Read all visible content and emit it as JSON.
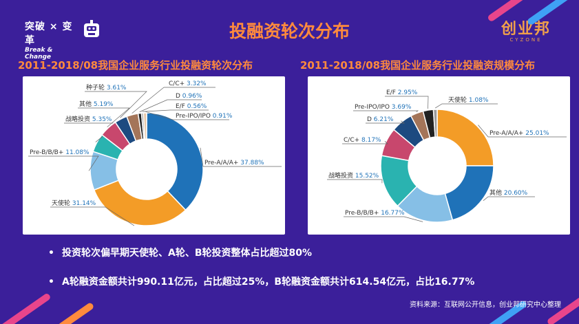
{
  "brand": {
    "left_cn": "突破 × 变革",
    "left_en": "Break & Change",
    "right_cn": "创业邦",
    "right_en": "CYZONE"
  },
  "page": {
    "title": "投融资轮次分布"
  },
  "colors": {
    "background": "#3b1f9a",
    "accent": "#ff8a3d"
  },
  "chart_data": [
    {
      "type": "pie",
      "title": "2011-2018/08我国企业服务行业投融资轮次分布",
      "slices": [
        {
          "label": "Pre-A/A/A+",
          "value": 37.88,
          "value_text": "37.88%",
          "color": "#1f72b8"
        },
        {
          "label": "天使轮",
          "value": 31.14,
          "value_text": "31.14%",
          "color": "#f39c27"
        },
        {
          "label": "Pre-B/B/B+",
          "value": 11.08,
          "value_text": "11.08%",
          "color": "#86bfe6"
        },
        {
          "label": "战略投资",
          "value": 5.35,
          "value_text": "5.35%",
          "color": "#2ab3b0"
        },
        {
          "label": "其他",
          "value": 5.19,
          "value_text": "5.19%",
          "color": "#c8476d"
        },
        {
          "label": "种子轮",
          "value": 3.61,
          "value_text": "3.61%",
          "color": "#1d4a80"
        },
        {
          "label": "C/C+",
          "value": 3.32,
          "value_text": "3.32%",
          "color": "#a47559"
        },
        {
          "label": "D",
          "value": 0.96,
          "value_text": "0.96%",
          "color": "#222222"
        },
        {
          "label": "E/F",
          "value": 0.56,
          "value_text": "0.56%",
          "color": "#9a9a9a"
        },
        {
          "label": "Pre-IPO/IPO",
          "value": 0.91,
          "value_text": "0.91%",
          "color": "#e6c7a8"
        }
      ]
    },
    {
      "type": "pie",
      "title": "2011-2018/08我国企业服务行业投融资规模分布",
      "slices": [
        {
          "label": "Pre-A/A/A+",
          "value": 25.01,
          "value_text": "25.01%",
          "color": "#f39c27"
        },
        {
          "label": "其他",
          "value": 20.6,
          "value_text": "20.60%",
          "color": "#1f72b8"
        },
        {
          "label": "Pre-B/B/B+",
          "value": 16.77,
          "value_text": "16.77%",
          "color": "#86bfe6"
        },
        {
          "label": "战略投资",
          "value": 15.52,
          "value_text": "15.52%",
          "color": "#2ab3b0"
        },
        {
          "label": "C/C+",
          "value": 8.17,
          "value_text": "8.17%",
          "color": "#c8476d"
        },
        {
          "label": "D",
          "value": 6.21,
          "value_text": "6.21%",
          "color": "#1d4a80"
        },
        {
          "label": "Pre-IPO/IPO",
          "value": 3.69,
          "value_text": "3.69%",
          "color": "#a47559"
        },
        {
          "label": "E/F",
          "value": 2.95,
          "value_text": "2.95%",
          "color": "#222222"
        },
        {
          "label": "天使轮",
          "value": 1.08,
          "value_text": "1.08%",
          "color": "#9a9a9a"
        }
      ]
    }
  ],
  "bullets": [
    "投资轮次偏早期天使轮、A轮、B轮投资整体占比超过80%",
    "A轮融资金额共计990.11亿元，占比超过25%，B轮融资金额共计614.54亿元，占比16.77%"
  ],
  "source_note": "资料来源：互联网公开信息，创业邦研究中心整理"
}
